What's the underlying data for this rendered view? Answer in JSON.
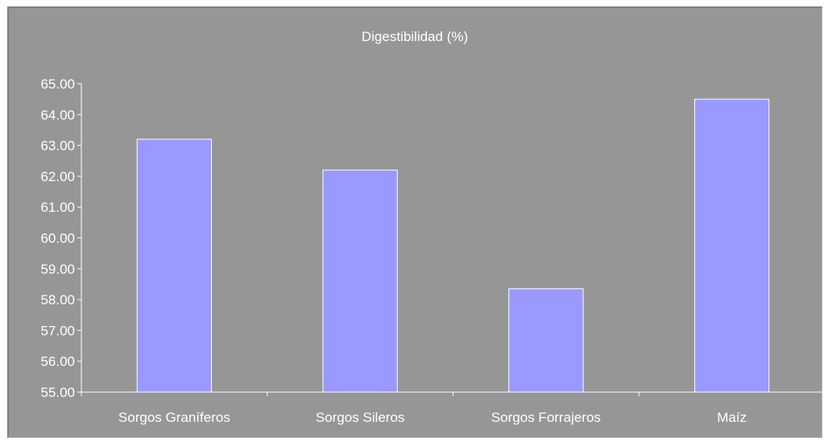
{
  "chart_data": {
    "type": "bar",
    "title": "Digestibilidad (%)",
    "categories": [
      "Sorgos Graníferos",
      "Sorgos Sileros",
      "Sorgos Forrajeros",
      "Maíz"
    ],
    "values": [
      63.2,
      62.2,
      58.35,
      64.5
    ],
    "ylim": [
      55,
      65
    ],
    "yticks": [
      "55.00",
      "56.00",
      "57.00",
      "58.00",
      "59.00",
      "60.00",
      "61.00",
      "62.00",
      "63.00",
      "64.00",
      "65.00"
    ],
    "xlabel": "",
    "ylabel": "",
    "grid": false,
    "colors": {
      "plot_background": "#969696",
      "bar_fill": "#9999ff",
      "bar_stroke": "#ffffff",
      "axis": "#ffffff",
      "text": "#ffffff"
    }
  }
}
